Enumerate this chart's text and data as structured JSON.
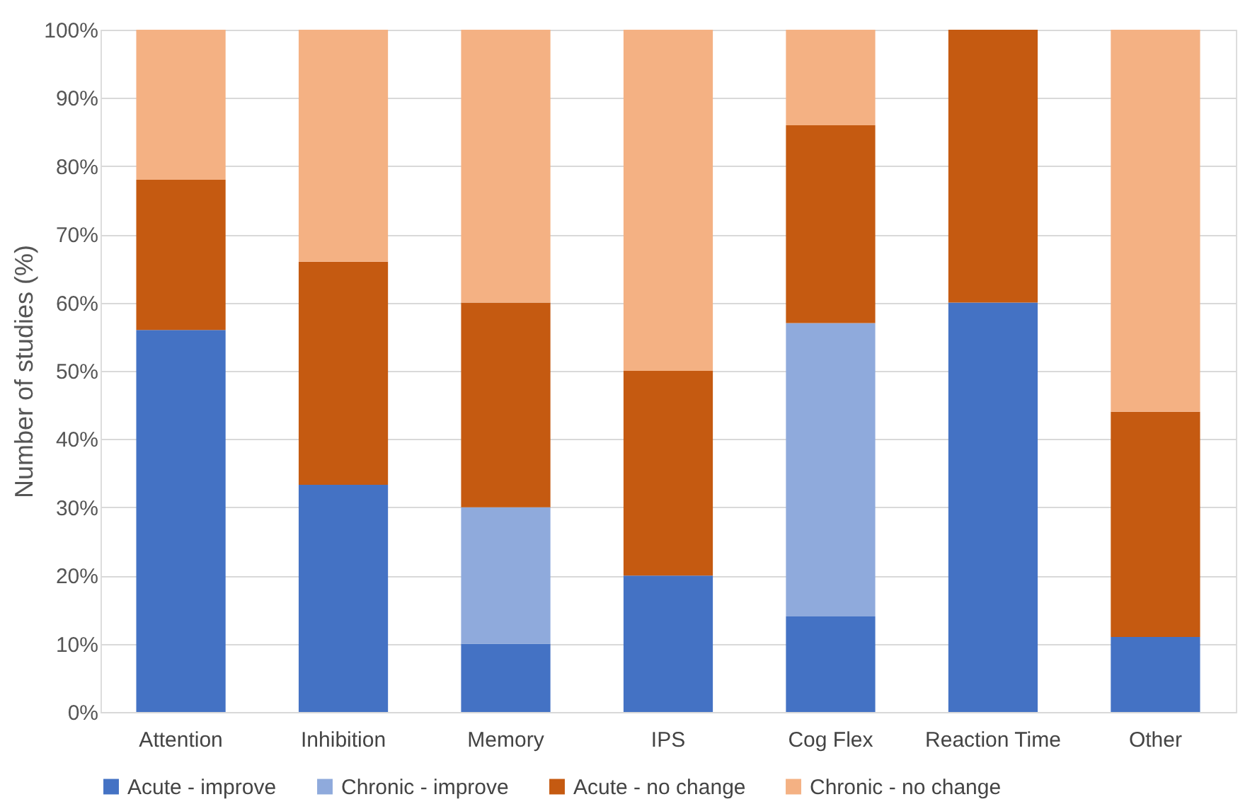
{
  "chart_data": {
    "type": "bar",
    "stacked": true,
    "ylabel": "Number of studies (%)",
    "categories": [
      "Attention",
      "Inhibition",
      "Memory",
      "IPS",
      "Cog Flex",
      "Reaction Time",
      "Other"
    ],
    "series": [
      {
        "name": "Acute - improve",
        "color": "#4472c4",
        "values": [
          56,
          33.3,
          10,
          20,
          14,
          60,
          11
        ]
      },
      {
        "name": "Chronic - improve",
        "color": "#8faadc",
        "values": [
          0,
          0,
          20,
          0,
          43,
          0,
          0
        ]
      },
      {
        "name": "Acute - no change",
        "color": "#c55a11",
        "values": [
          22,
          32.7,
          30,
          30,
          29,
          40,
          33
        ]
      },
      {
        "name": "Chronic - no change",
        "color": "#f4b183",
        "values": [
          22,
          34,
          40,
          50,
          14,
          0,
          56
        ]
      }
    ],
    "ylim": [
      0,
      100
    ],
    "yticks": [
      {
        "value": 0,
        "label": "0%"
      },
      {
        "value": 10,
        "label": "10%"
      },
      {
        "value": 20,
        "label": "20%"
      },
      {
        "value": 30,
        "label": "30%"
      },
      {
        "value": 40,
        "label": "40%"
      },
      {
        "value": 50,
        "label": "50%"
      },
      {
        "value": 60,
        "label": "60%"
      },
      {
        "value": 70,
        "label": "70%"
      },
      {
        "value": 80,
        "label": "80%"
      },
      {
        "value": 90,
        "label": "90%"
      },
      {
        "value": 100,
        "label": "100%"
      }
    ],
    "grid": "y",
    "legend": "bottom"
  }
}
